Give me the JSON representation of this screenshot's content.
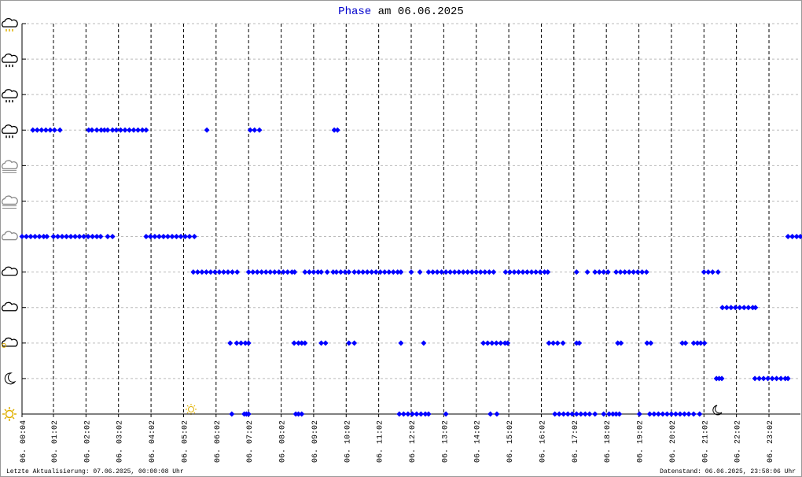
{
  "chart_data": {
    "type": "scatter",
    "title_param": "Phase",
    "title_rest": "am 06.06.2025",
    "footer_left": "Letzte Aktualisierung: 07.06.2025, 00:00:08 Uhr",
    "footer_right": "Datenstand: 06.06.2025, 23:58:06 Uhr",
    "color": "#0000ff",
    "xlim": [
      4,
      1440
    ],
    "ylim": [
      0,
      11
    ],
    "yticks": [
      0,
      1,
      2,
      3,
      4,
      5,
      6,
      7,
      8,
      9,
      10,
      11
    ],
    "xticks": [
      {
        "value": 4,
        "label": "06. 00:04"
      },
      {
        "value": 62,
        "label": "06. 01:02"
      },
      {
        "value": 122,
        "label": "06. 02:02"
      },
      {
        "value": 182,
        "label": "06. 03:02"
      },
      {
        "value": 242,
        "label": "06. 04:02"
      },
      {
        "value": 302,
        "label": "06. 05:02"
      },
      {
        "value": 362,
        "label": "06. 06:02"
      },
      {
        "value": 422,
        "label": "06. 07:02"
      },
      {
        "value": 482,
        "label": "06. 08:02"
      },
      {
        "value": 542,
        "label": "06. 09:02"
      },
      {
        "value": 602,
        "label": "06. 10:02"
      },
      {
        "value": 662,
        "label": "06. 11:02"
      },
      {
        "value": 722,
        "label": "06. 12:02"
      },
      {
        "value": 782,
        "label": "06. 13:02"
      },
      {
        "value": 842,
        "label": "06. 14:02"
      },
      {
        "value": 902,
        "label": "06. 15:02"
      },
      {
        "value": 962,
        "label": "06. 16:02"
      },
      {
        "value": 1022,
        "label": "06. 17:02"
      },
      {
        "value": 1082,
        "label": "06. 18:02"
      },
      {
        "value": 1142,
        "label": "06. 19:02"
      },
      {
        "value": 1202,
        "label": "06. 20:02"
      },
      {
        "value": 1262,
        "label": "06. 21:02"
      },
      {
        "value": 1322,
        "label": "06. 22:02"
      },
      {
        "value": 1382,
        "label": "06. 23:02"
      }
    ],
    "series": [
      {
        "y": 8,
        "x": [
          24,
          32,
          40,
          48,
          56,
          64,
          74,
          127,
          133,
          142,
          150,
          156,
          162,
          171,
          178,
          186,
          194,
          202,
          210,
          218,
          226,
          233,
          345,
          425,
          433,
          442,
          580,
          586
        ]
      },
      {
        "y": 5,
        "x": [
          4,
          12,
          20,
          28,
          36,
          44,
          50,
          62,
          70,
          78,
          86,
          94,
          102,
          110,
          118,
          126,
          134,
          142,
          149,
          162,
          171,
          233,
          241,
          249,
          257,
          265,
          273,
          281,
          289,
          297,
          305,
          313,
          322,
          1417,
          1425,
          1433,
          1440
        ]
      },
      {
        "y": 4,
        "x": [
          320,
          328,
          336,
          344,
          352,
          360,
          368,
          376,
          384,
          392,
          401,
          422,
          430,
          438,
          446,
          454,
          462,
          470,
          478,
          486,
          494,
          502,
          507,
          526,
          534,
          542,
          550,
          556,
          567,
          578,
          584,
          592,
          600,
          607,
          617,
          625,
          633,
          641,
          649,
          657,
          665,
          673,
          681,
          689,
          697,
          703,
          722,
          738,
          754,
          762,
          770,
          778,
          786,
          794,
          802,
          810,
          818,
          826,
          834,
          842,
          850,
          858,
          866,
          874,
          896,
          904,
          912,
          920,
          928,
          936,
          944,
          952,
          960,
          968,
          974,
          1027,
          1047,
          1061,
          1069,
          1077,
          1085,
          1100,
          1108,
          1116,
          1124,
          1132,
          1140,
          1148,
          1156,
          1262,
          1270,
          1278,
          1288
        ]
      },
      {
        "y": 3,
        "x": [
          1296,
          1304,
          1312,
          1320,
          1328,
          1336,
          1344,
          1352,
          1357
        ]
      },
      {
        "y": 2,
        "x": [
          388,
          400,
          408,
          416,
          422,
          506,
          514,
          520,
          526,
          556,
          564,
          607,
          617,
          703,
          745,
          855,
          863,
          871,
          879,
          887,
          895,
          900,
          976,
          984,
          992,
          1002,
          1027,
          1032,
          1103,
          1109,
          1157,
          1164,
          1222,
          1228,
          1243,
          1250,
          1256,
          1263
        ]
      },
      {
        "y": 1,
        "x": [
          1285,
          1290,
          1295,
          1356,
          1364,
          1372,
          1380,
          1388,
          1396,
          1404,
          1412,
          1417
        ]
      },
      {
        "y": 0,
        "x": [
          391,
          414,
          418,
          422,
          509,
          514,
          520,
          700,
          708,
          716,
          724,
          732,
          740,
          748,
          754,
          786,
          868,
          880,
          987,
          995,
          1003,
          1011,
          1019,
          1027,
          1035,
          1043,
          1051,
          1061,
          1077,
          1087,
          1094,
          1100,
          1106,
          1143,
          1162,
          1170,
          1178,
          1186,
          1194,
          1202,
          1210,
          1218,
          1226,
          1234,
          1243,
          1254
        ]
      }
    ]
  }
}
